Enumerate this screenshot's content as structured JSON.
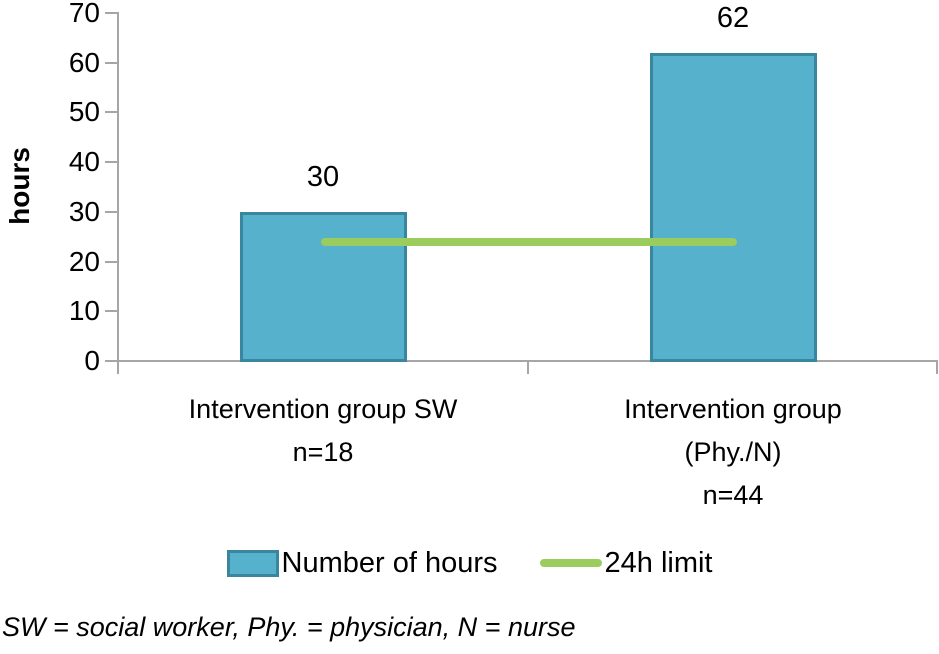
{
  "chart_data": {
    "type": "bar",
    "title": "",
    "xlabel": "",
    "ylabel": "hours",
    "ylim": [
      0,
      70
    ],
    "yticks": [
      0,
      10,
      20,
      30,
      40,
      50,
      60,
      70
    ],
    "grid": false,
    "legend_position": "bottom",
    "categories": [
      {
        "lines": [
          "Intervention group SW",
          "n=18"
        ]
      },
      {
        "lines": [
          "Intervention group",
          "(Phy./N)",
          "n=44"
        ]
      }
    ],
    "series": [
      {
        "name": "Number of hours",
        "type": "bar",
        "values": [
          30,
          62
        ],
        "fill": "#55B1CC",
        "border": "#39869F"
      },
      {
        "name": "24h limit",
        "type": "limit-line",
        "value": 24,
        "color": "#9ACD5E"
      }
    ],
    "data_labels": [
      "30",
      "62"
    ],
    "axis_color": "#A6A6A6",
    "text_color": "#000000",
    "footnote": "SW = social worker, Phy. = physician, N = nurse"
  }
}
